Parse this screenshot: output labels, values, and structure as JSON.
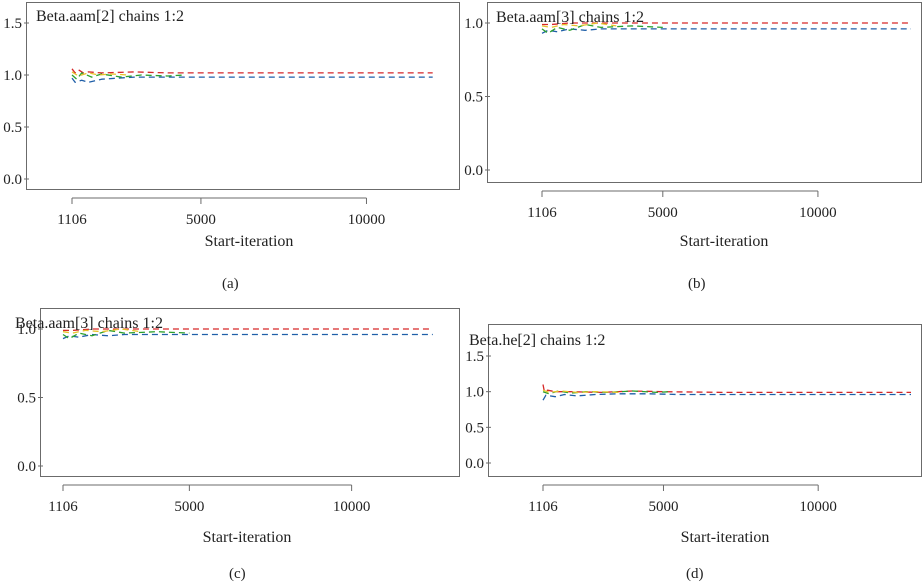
{
  "chart_data": [
    {
      "type": "line",
      "title": "Beta.aam[2] chains 1:2",
      "xlabel": "Start-iteration",
      "ylabel": "",
      "caption": "(a)",
      "x_ticks": [
        1106,
        5000,
        10000
      ],
      "x_tick_labels": [
        "1106",
        "5000",
        "10000"
      ],
      "y_ticks": [
        0.0,
        0.5,
        1.0,
        1.5
      ],
      "y_tick_labels": [
        "0.0",
        "0.5",
        "1.0",
        "1.5"
      ],
      "xlim": [
        1106,
        12100
      ],
      "ylim": [
        0,
        1.95
      ],
      "series": [
        {
          "color": "#d62728",
          "x": [
            1106,
            1200,
            1300,
            1450,
            1600,
            2000,
            3000,
            4000,
            6000,
            8000,
            10000,
            12000
          ],
          "y": [
            1.06,
            1.02,
            1.05,
            1.02,
            1.03,
            1.02,
            1.03,
            1.02,
            1.02,
            1.02,
            1.02,
            1.02
          ]
        },
        {
          "color": "#1f5fa8",
          "x": [
            1106,
            1200,
            1400,
            1600,
            2000,
            2500,
            3000,
            4000,
            6000,
            8000,
            10000,
            12000
          ],
          "y": [
            0.97,
            0.93,
            0.95,
            0.93,
            0.96,
            0.97,
            0.98,
            0.98,
            0.98,
            0.98,
            0.98,
            0.98
          ]
        },
        {
          "color": "#2ca02c",
          "x": [
            1106,
            1250,
            1400,
            1700,
            2000,
            2600,
            3200,
            4000,
            4500
          ],
          "y": [
            1.0,
            0.96,
            1.02,
            0.98,
            1.01,
            0.98,
            1.0,
            0.99,
            1.0
          ]
        },
        {
          "color": "#e6c229",
          "x": [
            1106,
            1300,
            1600,
            1900,
            2300,
            2800
          ],
          "y": [
            1.03,
            0.99,
            1.02,
            1.0,
            1.01,
            1.0
          ]
        }
      ]
    },
    {
      "type": "line",
      "title": "Beta.aam[3] chains 1:2",
      "xlabel": "Start-iteration",
      "ylabel": "",
      "caption": "(b)",
      "x_ticks": [
        1106,
        5000,
        10000
      ],
      "x_tick_labels": [
        "1106",
        "5000",
        "10000"
      ],
      "y_ticks": [
        0.0,
        0.5,
        1.0
      ],
      "y_tick_labels": [
        "0.0",
        "0.5",
        "1.0"
      ],
      "xlim": [
        1106,
        13000
      ],
      "ylim": [
        0,
        1.48
      ],
      "series": [
        {
          "color": "#d62728",
          "x": [
            1106,
            1400,
            2000,
            3000,
            4000,
            5000,
            7000,
            10000,
            13000
          ],
          "y": [
            0.99,
            0.99,
            1.0,
            1.0,
            1.0,
            1.0,
            1.0,
            1.0,
            1.0
          ]
        },
        {
          "color": "#1f5fa8",
          "x": [
            1106,
            1300,
            1600,
            2000,
            2500,
            3000,
            4000,
            5000,
            7000,
            10000,
            13000
          ],
          "y": [
            0.93,
            0.95,
            0.94,
            0.96,
            0.95,
            0.96,
            0.96,
            0.96,
            0.96,
            0.96,
            0.96
          ]
        },
        {
          "color": "#2ca02c",
          "x": [
            1106,
            1300,
            1600,
            2000,
            2500,
            3000,
            4000,
            5000
          ],
          "y": [
            0.96,
            0.93,
            0.97,
            0.95,
            0.99,
            0.97,
            0.98,
            0.97
          ]
        },
        {
          "color": "#e6c229",
          "x": [
            1106,
            1400,
            1800,
            2300,
            2900,
            3500
          ],
          "y": [
            0.98,
            0.97,
            0.99,
            0.98,
            1.0,
            0.98
          ]
        }
      ]
    },
    {
      "type": "line",
      "title": "Beta.aam[3] chains 1:2",
      "xlabel": "Start-iteration",
      "ylabel": "",
      "caption": "(c)",
      "x_ticks": [
        1106,
        5000,
        10000
      ],
      "x_tick_labels": [
        "1106",
        "5000",
        "10000"
      ],
      "y_ticks": [
        0.0,
        0.5,
        1.0
      ],
      "y_tick_labels": [
        "0.0",
        "0.5",
        "1.0"
      ],
      "xlim": [
        1106,
        12600
      ],
      "ylim": [
        0,
        1.48
      ],
      "series": [
        {
          "color": "#d62728",
          "x": [
            1106,
            1400,
            2000,
            3000,
            4000,
            5000,
            7000,
            10000,
            12500
          ],
          "y": [
            0.99,
            0.99,
            1.0,
            1.0,
            1.0,
            1.0,
            1.0,
            1.0,
            1.0
          ]
        },
        {
          "color": "#1f5fa8",
          "x": [
            1106,
            1300,
            1600,
            2000,
            2500,
            3000,
            4000,
            5000,
            7000,
            10000,
            12500
          ],
          "y": [
            0.93,
            0.95,
            0.94,
            0.96,
            0.95,
            0.96,
            0.96,
            0.96,
            0.96,
            0.96,
            0.96
          ]
        },
        {
          "color": "#2ca02c",
          "x": [
            1106,
            1300,
            1600,
            2000,
            2500,
            3000,
            4000,
            5000
          ],
          "y": [
            0.96,
            0.93,
            0.97,
            0.95,
            0.99,
            0.97,
            0.98,
            0.97
          ]
        },
        {
          "color": "#e6c229",
          "x": [
            1106,
            1400,
            1800,
            2300,
            2900,
            3500
          ],
          "y": [
            0.98,
            0.97,
            0.99,
            0.98,
            1.0,
            0.98
          ]
        }
      ]
    },
    {
      "type": "line",
      "title": "Beta.he[2] chains 1:2",
      "xlabel": "Start-iteration",
      "ylabel": "",
      "caption": "(d)",
      "x_ticks": [
        1106,
        5000,
        10000
      ],
      "x_tick_labels": [
        "1106",
        "5000",
        "10000"
      ],
      "y_ticks": [
        0.0,
        0.5,
        1.0,
        1.5
      ],
      "y_tick_labels": [
        "0.0",
        "0.5",
        "1.0",
        "1.5"
      ],
      "xlim": [
        1106,
        13000
      ],
      "ylim": [
        0,
        2.0
      ],
      "series": [
        {
          "color": "#d62728",
          "x": [
            1106,
            1150,
            1250,
            1500,
            2000,
            3000,
            4000,
            5000,
            7000,
            10000,
            13000
          ],
          "y": [
            1.1,
            1.0,
            1.02,
            1.0,
            1.0,
            0.99,
            1.01,
            1.0,
            0.99,
            0.99,
            0.99
          ]
        },
        {
          "color": "#1f5fa8",
          "x": [
            1106,
            1200,
            1500,
            1800,
            2200,
            2800,
            3500,
            4500,
            5500,
            7000,
            10000,
            13000
          ],
          "y": [
            0.88,
            0.95,
            0.93,
            0.96,
            0.94,
            0.96,
            0.97,
            0.97,
            0.96,
            0.96,
            0.96,
            0.96
          ]
        },
        {
          "color": "#2ca02c",
          "x": [
            1106,
            1300,
            1600,
            2000,
            2500,
            3200,
            4000,
            4800,
            5200
          ],
          "y": [
            1.0,
            0.97,
            1.01,
            0.98,
            1.0,
            0.99,
            1.01,
            0.99,
            1.0
          ]
        },
        {
          "color": "#e6c229",
          "x": [
            1106,
            1300,
            1700,
            2200,
            2800,
            3600
          ],
          "y": [
            1.02,
            0.99,
            1.01,
            0.99,
            1.0,
            0.99
          ]
        }
      ]
    }
  ]
}
